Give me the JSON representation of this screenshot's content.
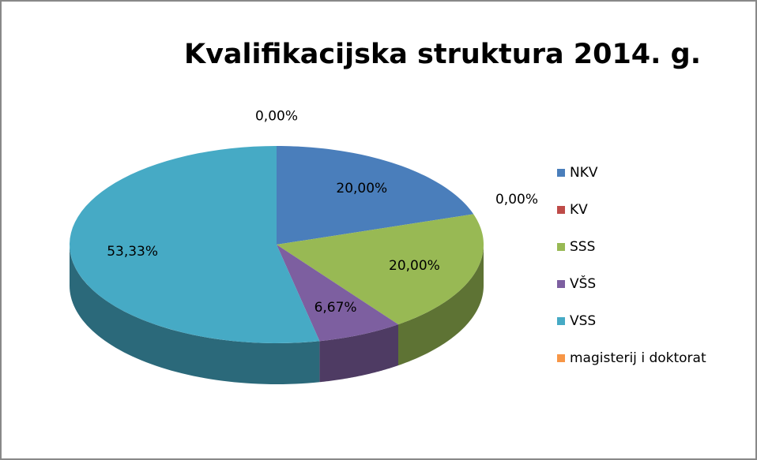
{
  "chart_data": {
    "type": "pie",
    "title": "Kvalifikacijska struktura 2014. g.",
    "categories": [
      "NKV",
      "KV",
      "SSS",
      "VŠS",
      "VSS",
      "magisterij i doktorat"
    ],
    "values": [
      20,
      0,
      20,
      6.67,
      53.33,
      0
    ],
    "value_labels": [
      "20,00%",
      "0,00%",
      "20,00%",
      "6,67%",
      "53,33%",
      "0,00%"
    ],
    "colors": [
      "#4a7ebb",
      "#be4b48",
      "#98b954",
      "#7d5fa0",
      "#46aac5",
      "#f79646"
    ],
    "legend": "right"
  }
}
